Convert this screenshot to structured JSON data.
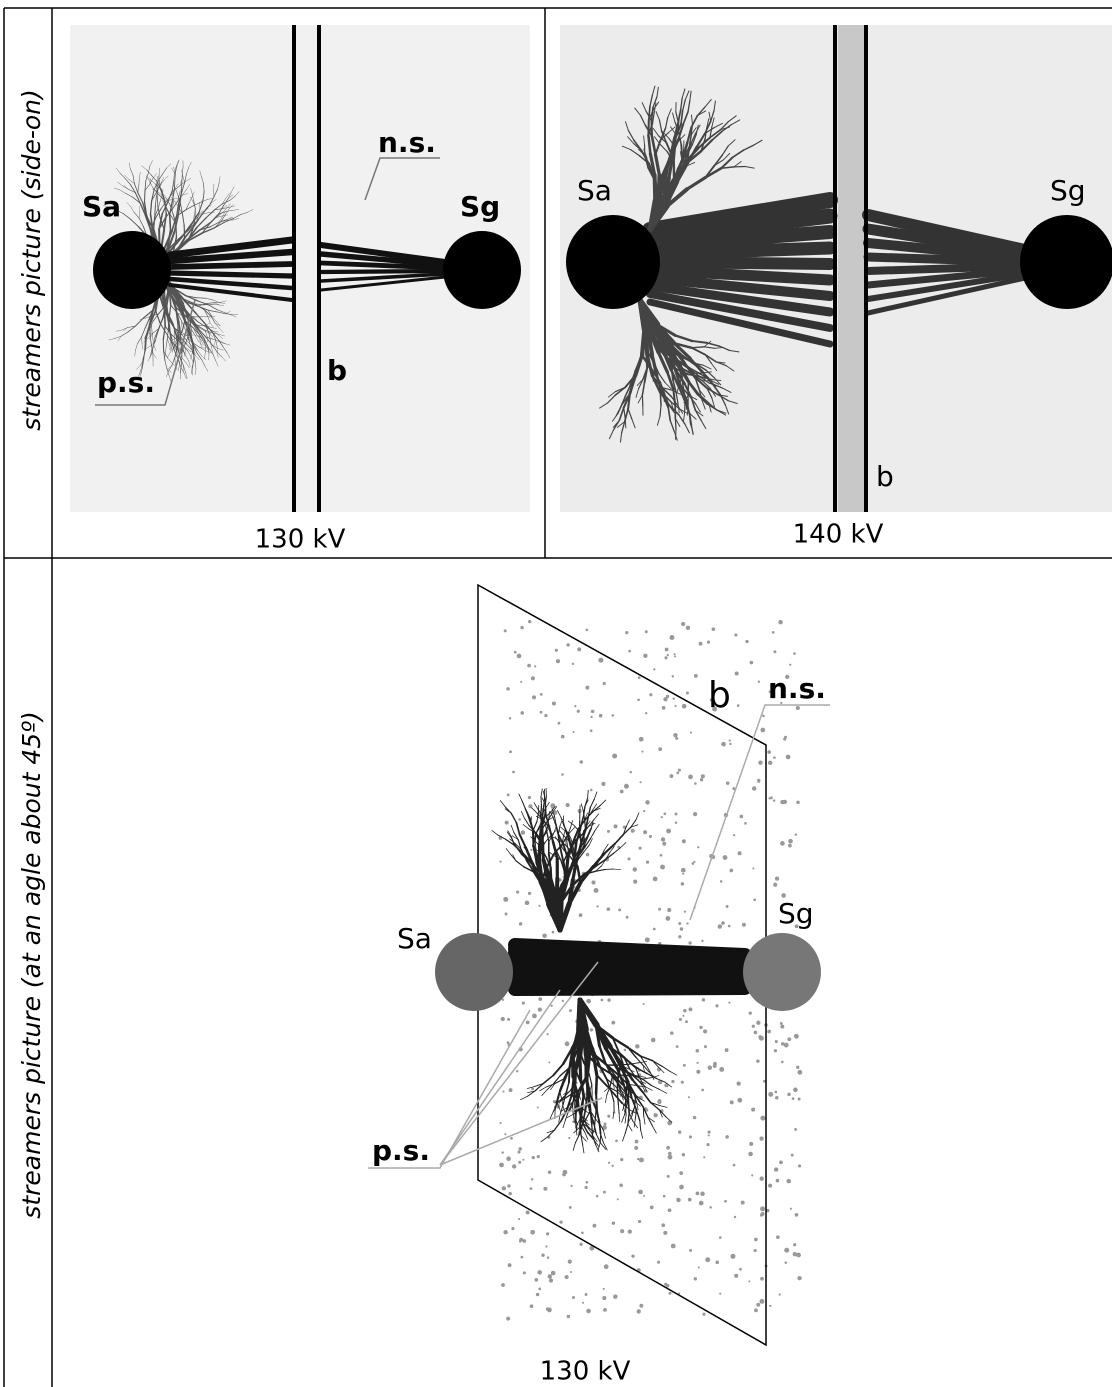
{
  "rows": [
    {
      "label": "streamers picture (side-on)",
      "panels": [
        {
          "caption": "130 kV",
          "labels": {
            "anode": "Sa",
            "ground": "Sg",
            "barrier": "b",
            "negative": "n.s.",
            "positive": "p.s."
          }
        },
        {
          "caption": "140 kV",
          "labels": {
            "anode": "Sa",
            "ground": "Sg",
            "barrier": "b"
          }
        }
      ]
    },
    {
      "label": "streamers picture (at an agle about 45º)",
      "panels": [
        {
          "caption": "130 kV",
          "labels": {
            "anode": "Sa",
            "ground": "Sg",
            "barrier": "b",
            "negative": "n.s.",
            "positive": "p.s."
          }
        }
      ]
    }
  ]
}
